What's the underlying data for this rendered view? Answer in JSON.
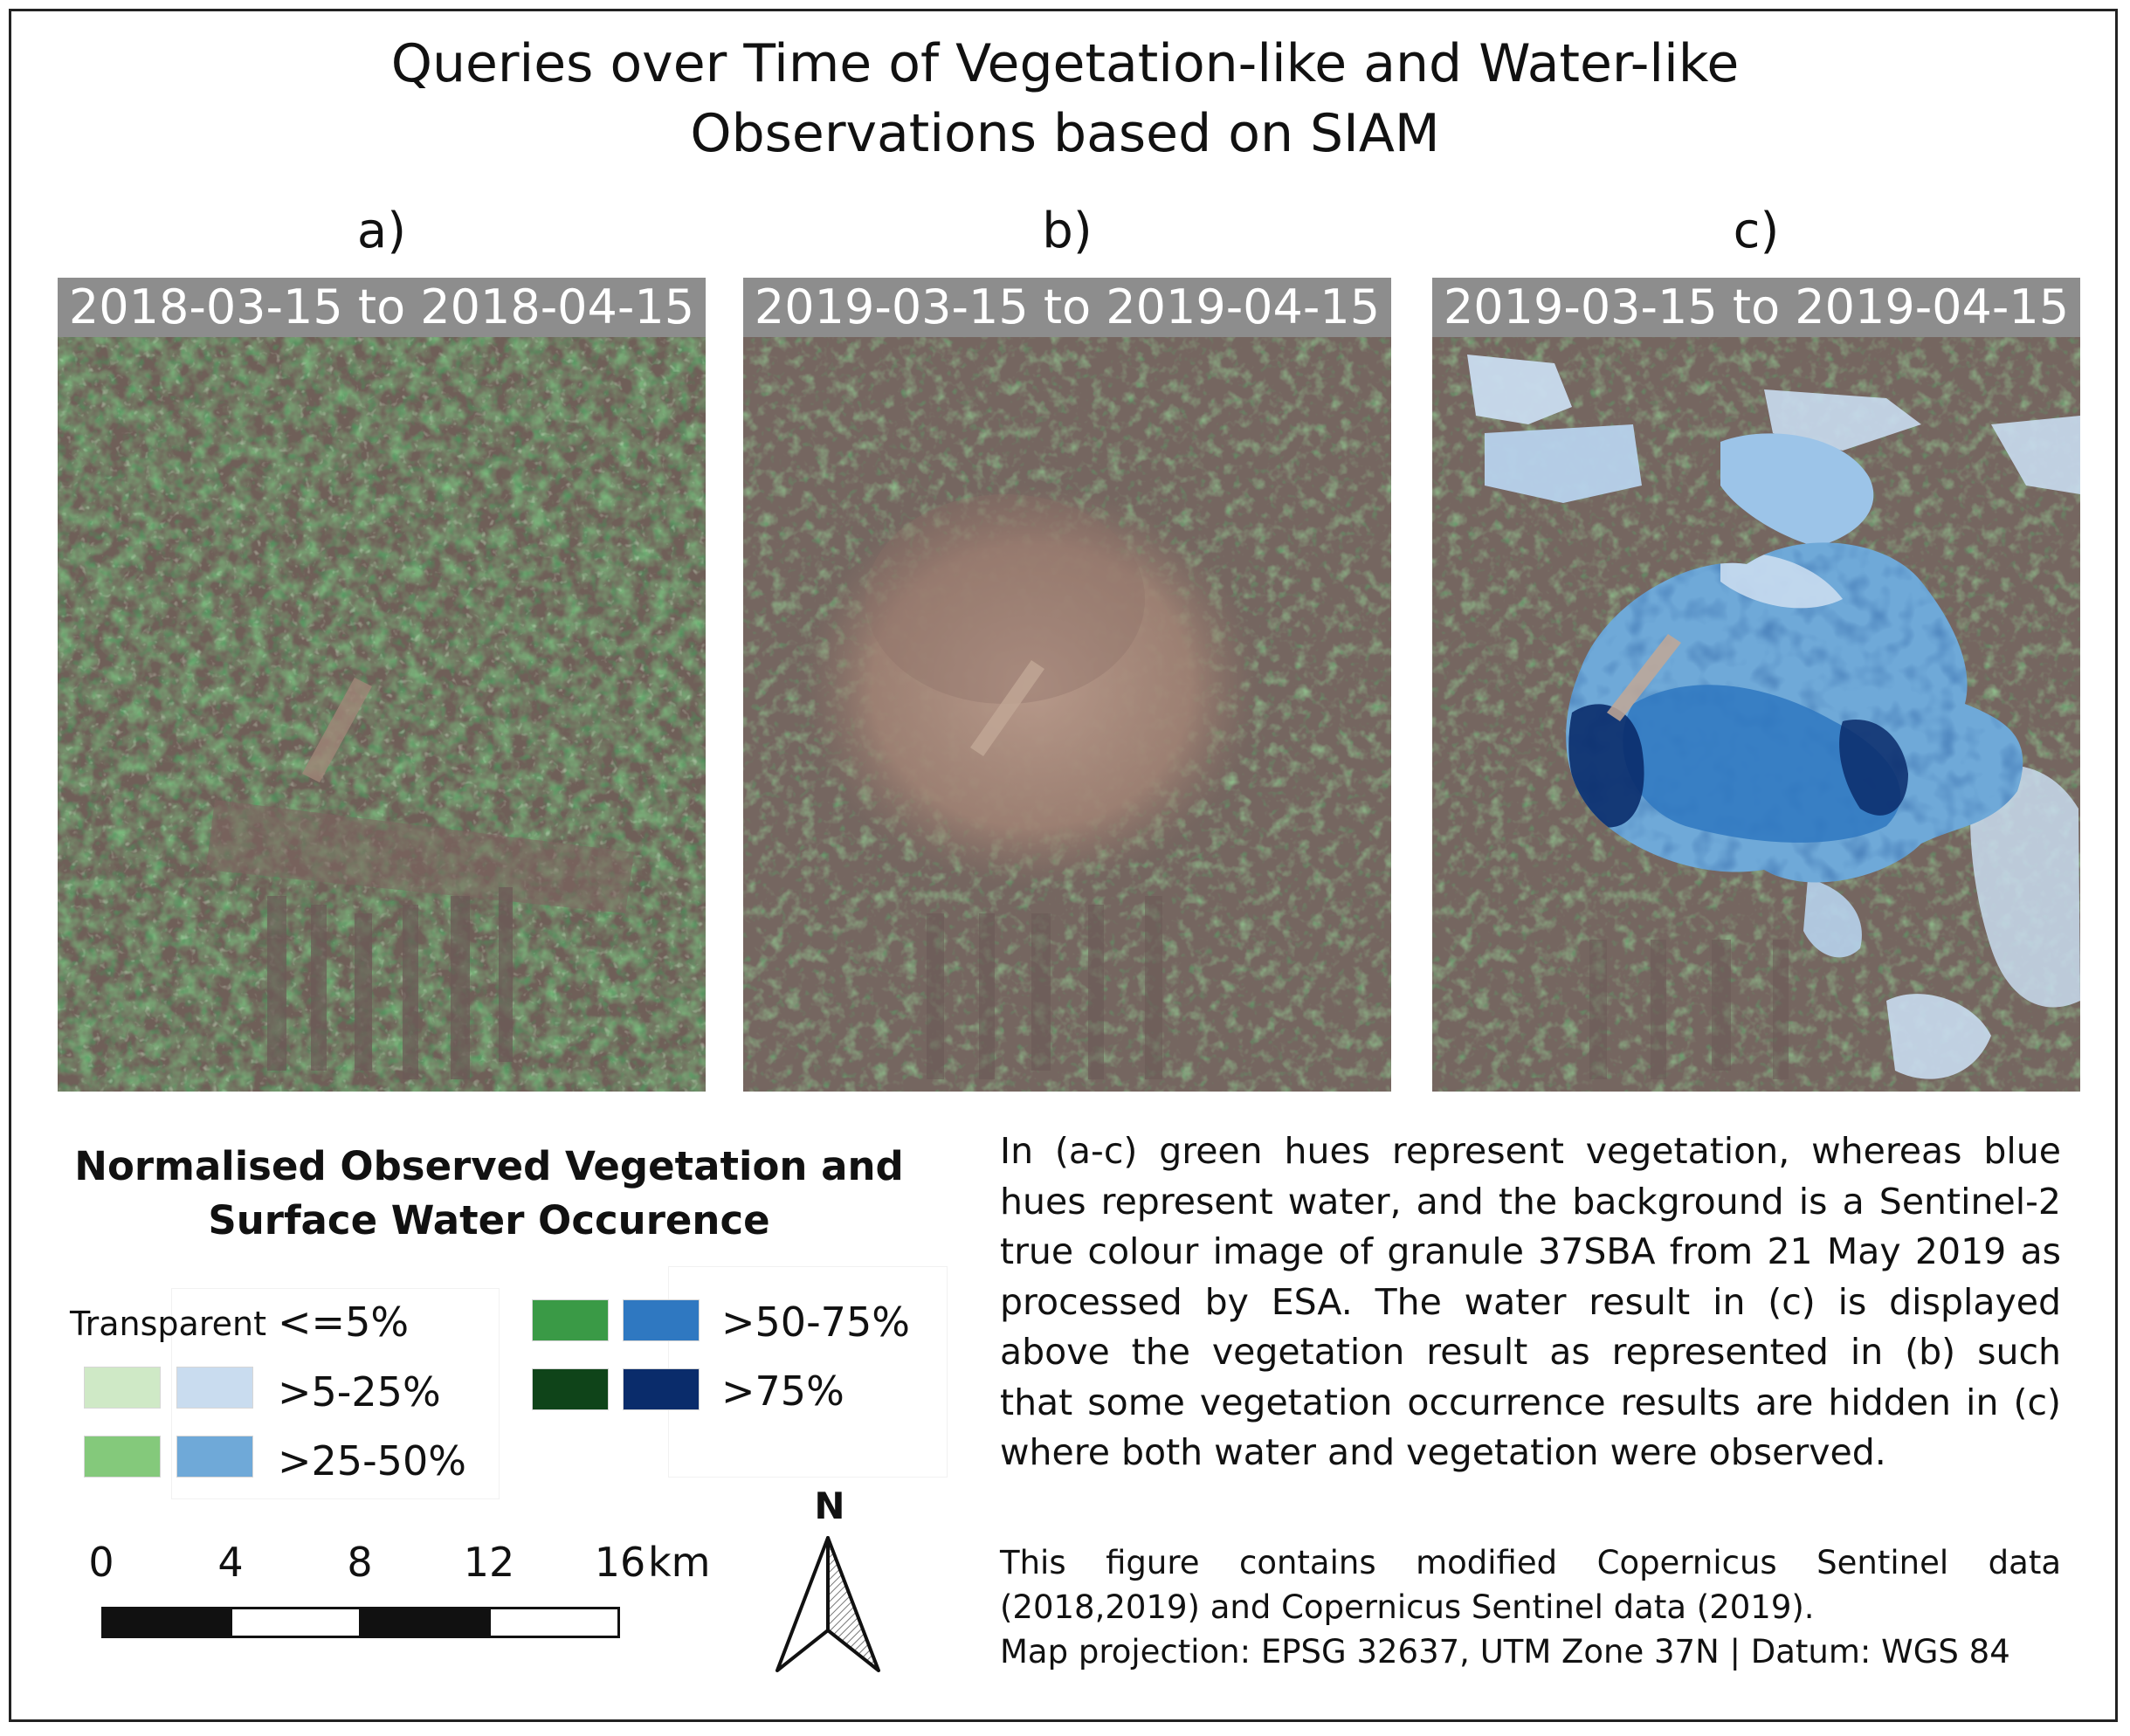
{
  "title": {
    "line1": "Queries over Time of Vegetation-like and Water-like",
    "line2": "Observations based on SIAM"
  },
  "panels": [
    {
      "label": "a)",
      "date_range": "2018-03-15 to 2018-04-15",
      "layer": "vegetation"
    },
    {
      "label": "b)",
      "date_range": "2019-03-15 to 2019-04-15",
      "layer": "vegetation"
    },
    {
      "label": "c)",
      "date_range": "2019-03-15 to 2019-04-15",
      "layer": "vegetation and water"
    }
  ],
  "legend": {
    "title_line1": "Normalised Observed Vegetation and",
    "title_line2": "Surface Water Occurence",
    "transparent_label": "Transparent",
    "classes": [
      {
        "label": "<=5%",
        "veg_color": null,
        "water_color": null
      },
      {
        "label": ">5-25%",
        "veg_color": "#cfe9c6",
        "water_color": "#c9dcef"
      },
      {
        "label": ">25-50%",
        "veg_color": "#84c97b",
        "water_color": "#6fa9d8"
      },
      {
        "label": ">50-75%",
        "veg_color": "#3a9a46",
        "water_color": "#2f78c1"
      },
      {
        "label": ">75%",
        "veg_color": "#0f4419",
        "water_color": "#0a2c6b"
      }
    ]
  },
  "scale_bar": {
    "ticks": [
      "0",
      "4",
      "8",
      "12",
      "16"
    ],
    "unit": "km"
  },
  "north_arrow": {
    "letter": "N",
    "icon": "north-arrow-icon"
  },
  "description": "In (a-c) green hues represent vegetation, whereas blue hues represent water, and the background is a Sentinel-2 true colour image of granule 37SBA from 21 May 2019 as processed by ESA. The water result in (c) is displayed above the vegetation result as represented in (b) such that some vegetation occurrence results are hidden in (c) where both water and vegetation were observed.",
  "credits": {
    "line1": "This figure contains modified Copernicus Sentinel data",
    "line2": "(2018,2019) and Copernicus Sentinel data (2019).",
    "line3": "Map projection: EPSG 32637, UTM Zone 37N | Datum: WGS 84"
  }
}
